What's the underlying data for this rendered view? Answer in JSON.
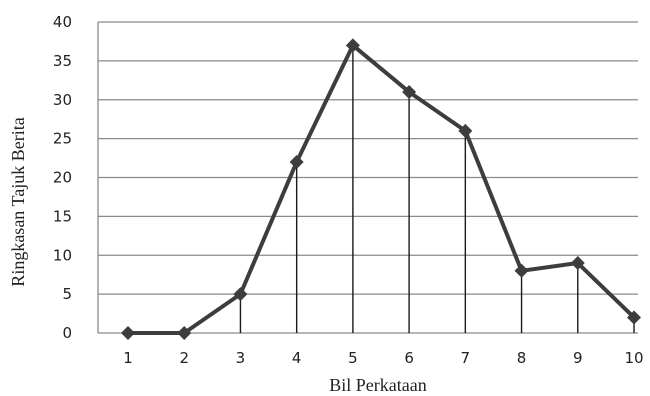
{
  "chart_data": {
    "type": "line",
    "title": "",
    "xlabel": "Bil Perkataan",
    "ylabel": "Ringkasan Tajuk Berita",
    "x": [
      1,
      2,
      3,
      4,
      5,
      6,
      7,
      8,
      9,
      10
    ],
    "series": [
      {
        "values": [
          0,
          0,
          5,
          22,
          37,
          31,
          26,
          8,
          9,
          2
        ]
      }
    ],
    "ylim": [
      0,
      40
    ],
    "yticks": [
      0,
      5,
      10,
      15,
      20,
      25,
      30,
      35,
      40
    ],
    "xticks": [
      1,
      2,
      3,
      4,
      5,
      6,
      7,
      8,
      9,
      10
    ],
    "grid": "horizontal",
    "drop_lines": true,
    "colors": {
      "series": "#3d3d3d",
      "grid": "#8a8a8a",
      "drop": "#1a1a1a"
    }
  }
}
